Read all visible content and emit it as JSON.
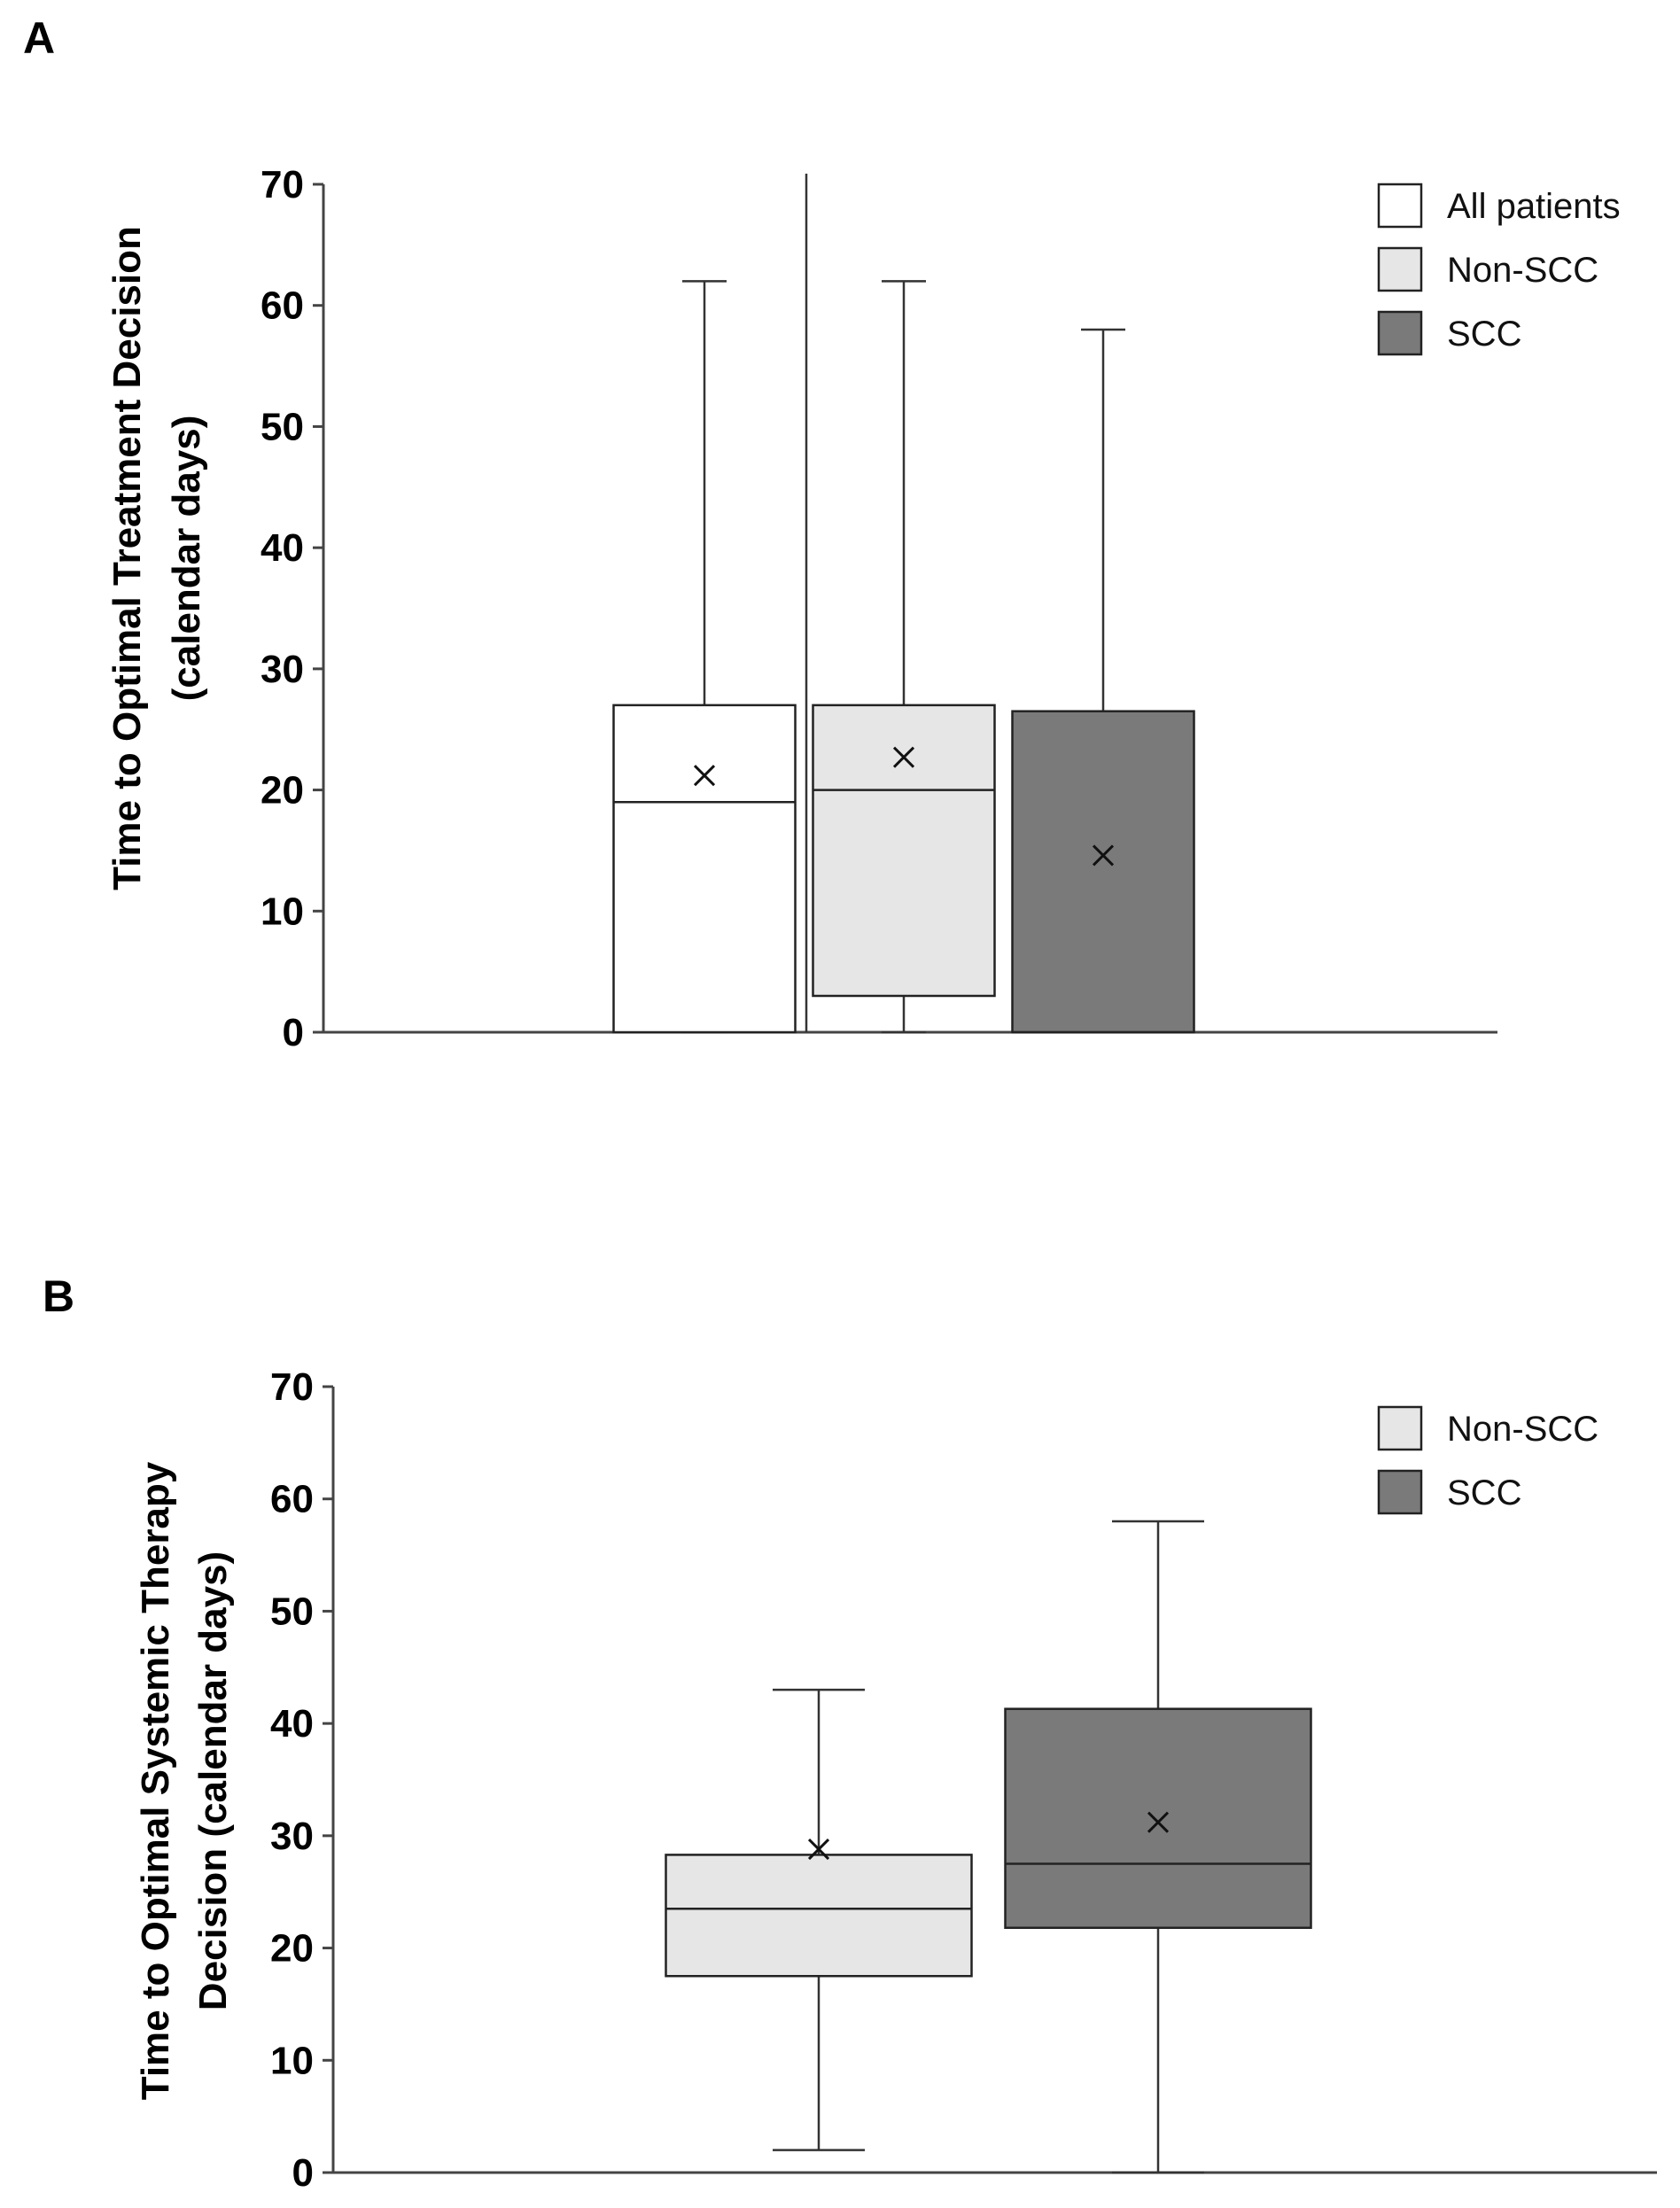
{
  "chart_data": [
    {
      "type": "boxplot",
      "panel_label": "A",
      "ylabel_line1": "Time to Optimal Treatment Decision",
      "ylabel_line2": "(calendar days)",
      "ylim": [
        0,
        70
      ],
      "yticks": [
        0,
        10,
        20,
        30,
        40,
        50,
        60,
        70
      ],
      "legend": [
        {
          "name": "All patients",
          "color": "#ffffff"
        },
        {
          "name": "Non-SCC",
          "color": "#e6e6e6"
        },
        {
          "name": "SCC",
          "color": "#7a7a7a"
        }
      ],
      "series": [
        {
          "name": "All patients",
          "color": "#ffffff",
          "min": 0,
          "q1": 0,
          "median": 19,
          "q3": 27,
          "max": 62,
          "mean": 21.2
        },
        {
          "name": "Non-SCC",
          "color": "#e6e6e6",
          "min": 0,
          "q1": 3,
          "median": 20,
          "q3": 27,
          "max": 62,
          "mean": 22.7
        },
        {
          "name": "SCC",
          "color": "#7a7a7a",
          "min": 0,
          "q1": 0,
          "median": 0,
          "q3": 26.5,
          "max": 58,
          "mean": 14.6
        }
      ]
    },
    {
      "type": "boxplot",
      "panel_label": "B",
      "ylabel_line1": "Time to Optimal Systemic Therapy",
      "ylabel_line2": "Decision (calendar days)",
      "ylim": [
        0,
        70
      ],
      "yticks": [
        0,
        10,
        20,
        30,
        40,
        50,
        60,
        70
      ],
      "legend": [
        {
          "name": "Non-SCC",
          "color": "#e6e6e6"
        },
        {
          "name": "SCC",
          "color": "#7a7a7a"
        }
      ],
      "series": [
        {
          "name": "Non-SCC",
          "color": "#e6e6e6",
          "min": 2,
          "q1": 17.5,
          "median": 23.5,
          "q3": 28.3,
          "max": 43,
          "mean": 28.8
        },
        {
          "name": "SCC",
          "color": "#7a7a7a",
          "min": 0,
          "q1": 21.8,
          "median": 27.5,
          "q3": 41.3,
          "max": 58,
          "mean": 31.2
        }
      ]
    }
  ]
}
